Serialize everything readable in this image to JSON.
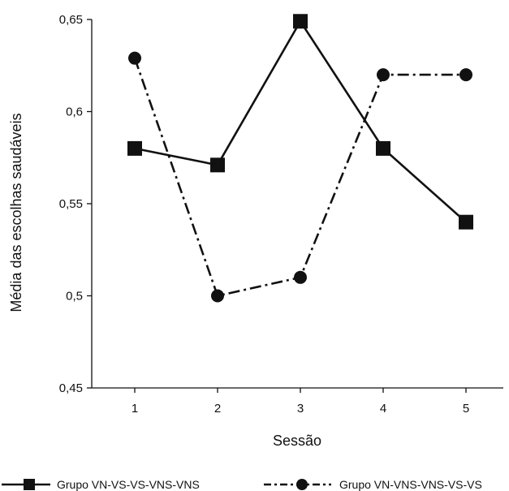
{
  "chart_data": {
    "type": "line",
    "xlabel": "Sessão",
    "ylabel": "Média das escolhas saudáveis",
    "x": [
      "1",
      "2",
      "3",
      "4",
      "5"
    ],
    "ylim": [
      0.45,
      0.65
    ],
    "yticks": [
      "0,45",
      "0,5",
      "0,55",
      "0,6",
      "0,65"
    ],
    "grid": false,
    "legend_position": "bottom",
    "series": [
      {
        "name": "Grupo VN-VS-VS-VNS-VNS",
        "values": [
          0.58,
          0.571,
          0.649,
          0.58,
          0.54
        ],
        "marker": "square",
        "line_style": "solid",
        "color": "#111111"
      },
      {
        "name": "Grupo VN-VNS-VNS-VS-VS",
        "values": [
          0.629,
          0.5,
          0.51,
          0.62,
          0.62
        ],
        "marker": "circle",
        "line_style": "dash-dot",
        "color": "#111111"
      }
    ]
  }
}
